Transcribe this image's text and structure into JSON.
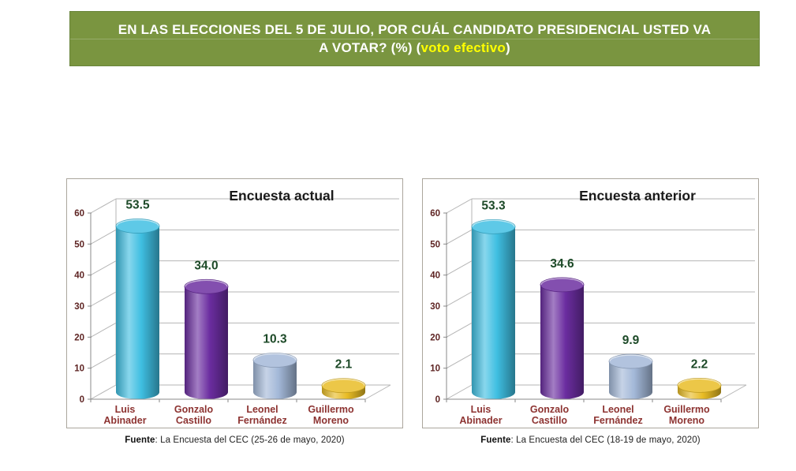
{
  "banner": {
    "line1": "EN LAS ELECCIONES DEL 5 DE JULIO, POR CUÁL CANDIDATO PRESIDENCIAL USTED VA",
    "line2_prefix": "A VOTAR? (%) (",
    "line2_highlight": "voto efectivo",
    "line2_suffix": ")"
  },
  "colors": {
    "banner_bg": "#7a9540",
    "banner_text": "#ffffff",
    "banner_highlight": "#ffff00",
    "panel_border": "#aba69d",
    "grid": "#b5b5b5",
    "axis": "#8a8a8a",
    "tick_label": "#5e2423",
    "category_label": "#8d3331",
    "value_label": "#1d4a28",
    "title": "#1a1a1a"
  },
  "chart_data": [
    {
      "type": "bar",
      "style": "3d-cylinder",
      "title": "Encuesta actual",
      "categories": [
        "Luis Abinader",
        "Gonzalo Castillo",
        "Leonel Fernández",
        "Guillermo Moreno"
      ],
      "values": [
        53.5,
        34.0,
        10.3,
        2.1
      ],
      "value_labels": [
        "53.5",
        "34.0",
        "10.3",
        "2.1"
      ],
      "bar_colors": [
        "#3fbfe2",
        "#6b2da0",
        "#a3b8d8",
        "#e8bc25"
      ],
      "xlabel": "",
      "ylabel": "",
      "ylim": [
        0,
        60
      ],
      "yticks": [
        0,
        10,
        20,
        30,
        40,
        50,
        60
      ],
      "grid": true,
      "legend": "none",
      "source_bold": "Fuente",
      "source_rest": ": La Encuesta del CEC (25-26 de mayo, 2020)"
    },
    {
      "type": "bar",
      "style": "3d-cylinder",
      "title": "Encuesta anterior",
      "categories": [
        "Luis Abinader",
        "Gonzalo Castillo",
        "Leonel Fernández",
        "Guillermo Moreno"
      ],
      "values": [
        53.3,
        34.6,
        9.9,
        2.2
      ],
      "value_labels": [
        "53.3",
        "34.6",
        "9.9",
        "2.2"
      ],
      "bar_colors": [
        "#3fbfe2",
        "#6b2da0",
        "#a3b8d8",
        "#e8bc25"
      ],
      "xlabel": "",
      "ylabel": "",
      "ylim": [
        0,
        60
      ],
      "yticks": [
        0,
        10,
        20,
        30,
        40,
        50,
        60
      ],
      "grid": true,
      "legend": "none",
      "source_bold": "Fuente",
      "source_rest": ": La Encuesta del CEC (18-19 de mayo, 2020)"
    }
  ]
}
